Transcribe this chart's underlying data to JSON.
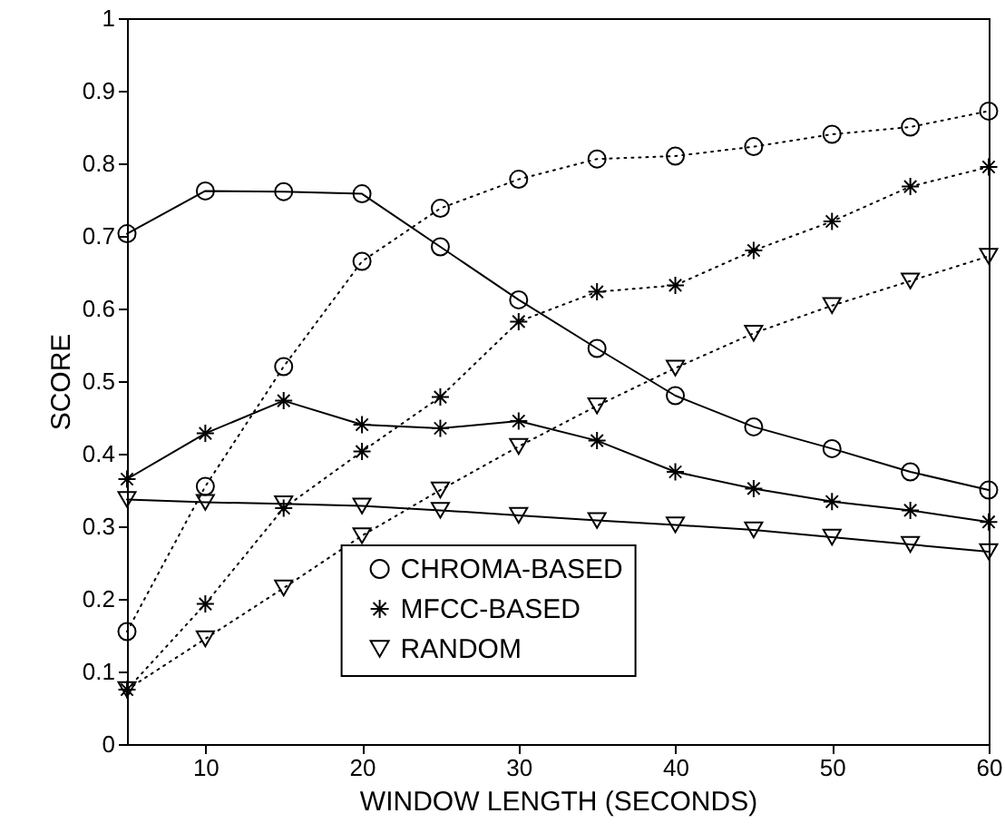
{
  "chart_data": {
    "type": "line",
    "xlabel": "WINDOW LENGTH (SECONDS)",
    "ylabel": "SCORE",
    "x": [
      5,
      10,
      15,
      20,
      25,
      30,
      35,
      40,
      45,
      50,
      55,
      60
    ],
    "xlim": [
      5,
      60
    ],
    "xticks": [
      10,
      20,
      30,
      40,
      50,
      60
    ],
    "ylim": [
      0,
      1
    ],
    "yticks": [
      0,
      0.1,
      0.2,
      0.3,
      0.4,
      0.5,
      0.6,
      0.7,
      0.8,
      0.9,
      1
    ],
    "grid": false,
    "legend": "bottom",
    "series": [
      {
        "name": "CHROMA-BASED",
        "color": "#000000",
        "marker": "circle",
        "line_style": "solid",
        "values": [
          0.703,
          0.762,
          0.761,
          0.758,
          0.685,
          0.612,
          0.545,
          0.48,
          0.437,
          0.407,
          0.375,
          0.35
        ]
      },
      {
        "name": "MFCC-BASED",
        "color": "#000000",
        "marker": "cross",
        "line_style": "solid",
        "values": [
          0.365,
          0.428,
          0.473,
          0.44,
          0.435,
          0.445,
          0.418,
          0.375,
          0.352,
          0.334,
          0.322,
          0.306
        ]
      },
      {
        "name": "RANDOM",
        "color": "#000000",
        "marker": "triangle",
        "line_style": "solid",
        "values": [
          0.337,
          0.333,
          0.331,
          0.328,
          0.322,
          0.315,
          0.308,
          0.302,
          0.295,
          0.285,
          0.275,
          0.265
        ]
      },
      {
        "color": "#000000",
        "marker": "circle",
        "line_style": "dotted",
        "values": [
          0.155,
          0.355,
          0.52,
          0.665,
          0.738,
          0.778,
          0.806,
          0.81,
          0.823,
          0.84,
          0.85,
          0.872
        ]
      },
      {
        "color": "#000000",
        "marker": "cross",
        "line_style": "dotted",
        "values": [
          0.075,
          0.193,
          0.325,
          0.403,
          0.478,
          0.582,
          0.623,
          0.632,
          0.68,
          0.72,
          0.768,
          0.795
        ]
      },
      {
        "color": "#000000",
        "marker": "triangle",
        "line_style": "dotted",
        "values": [
          0.075,
          0.145,
          0.215,
          0.287,
          0.35,
          0.41,
          0.466,
          0.518,
          0.566,
          0.604,
          0.638,
          0.672
        ]
      }
    ]
  }
}
